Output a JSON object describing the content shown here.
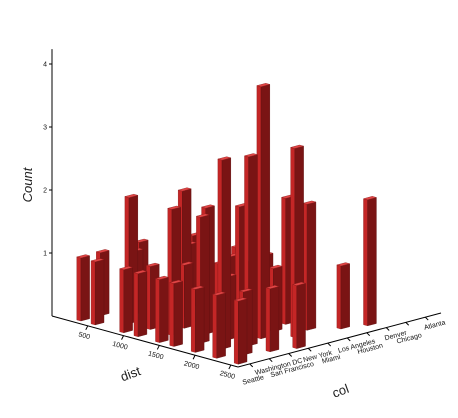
{
  "chart_data": {
    "type": "bar3d",
    "xlabel": "dist",
    "ylabel": "col",
    "zlabel": "Count",
    "xlim": [
      0,
      2600
    ],
    "x_ticks": [
      500,
      1000,
      1500,
      2000,
      2500
    ],
    "z_ticks": [
      1,
      2,
      3,
      4
    ],
    "zlim": [
      0,
      4.3
    ],
    "y_categories": [
      "Seattle",
      "Washington DC",
      "San Francisco",
      "New York",
      "Miami",
      "Los Angeles",
      "Houston",
      "Denver",
      "Chicago",
      "Atlanta"
    ],
    "colors": {
      "front": "#c42626",
      "side": "#7a1414",
      "top": "#e04545",
      "axis": "#000000"
    },
    "bars": [
      {
        "x": 300,
        "y": "Seattle",
        "count": 1
      },
      {
        "x": 300,
        "y": "Washington DC",
        "count": 1
      },
      {
        "x": 300,
        "y": "New York",
        "count": 1
      },
      {
        "x": 500,
        "y": "Seattle",
        "count": 1
      },
      {
        "x": 500,
        "y": "San Francisco",
        "count": 1
      },
      {
        "x": 500,
        "y": "Los Angeles",
        "count": 1
      },
      {
        "x": 700,
        "y": "Washington DC",
        "count": 2
      },
      {
        "x": 700,
        "y": "Miami",
        "count": 1
      },
      {
        "x": 900,
        "y": "Seattle",
        "count": 1
      },
      {
        "x": 900,
        "y": "New York",
        "count": 2
      },
      {
        "x": 1000,
        "y": "Washington DC",
        "count": 1
      },
      {
        "x": 1100,
        "y": "Seattle",
        "count": 1
      },
      {
        "x": 1100,
        "y": "Los Angeles",
        "count": 1
      },
      {
        "x": 1200,
        "y": "San Francisco",
        "count": 1
      },
      {
        "x": 1300,
        "y": "Washington DC",
        "count": 2
      },
      {
        "x": 1300,
        "y": "Miami",
        "count": 1
      },
      {
        "x": 1400,
        "y": "Seattle",
        "count": 1
      },
      {
        "x": 1400,
        "y": "New York",
        "count": 1
      },
      {
        "x": 1500,
        "y": "San Francisco",
        "count": 2
      },
      {
        "x": 1500,
        "y": "Los Angeles",
        "count": 1
      },
      {
        "x": 1600,
        "y": "Seattle",
        "count": 1
      },
      {
        "x": 1600,
        "y": "Miami",
        "count": 1
      },
      {
        "x": 1700,
        "y": "Washington DC",
        "count": 2
      },
      {
        "x": 1700,
        "y": "New York",
        "count": 2
      },
      {
        "x": 1800,
        "y": "San Francisco",
        "count": 1
      },
      {
        "x": 1800,
        "y": "Los Angeles",
        "count": 2
      },
      {
        "x": 1900,
        "y": "Seattle",
        "count": 1
      },
      {
        "x": 1900,
        "y": "Miami",
        "count": 1
      },
      {
        "x": 2000,
        "y": "Washington DC",
        "count": 3
      },
      {
        "x": 2000,
        "y": "New York",
        "count": 4
      },
      {
        "x": 2100,
        "y": "San Francisco",
        "count": 3
      },
      {
        "x": 2100,
        "y": "Los Angeles",
        "count": 2
      },
      {
        "x": 2200,
        "y": "Seattle",
        "count": 1
      },
      {
        "x": 2200,
        "y": "Miami",
        "count": 3
      },
      {
        "x": 2300,
        "y": "Washington DC",
        "count": 1
      },
      {
        "x": 2300,
        "y": "Houston",
        "count": 1
      },
      {
        "x": 2400,
        "y": "San Francisco",
        "count": 1
      },
      {
        "x": 2400,
        "y": "Denver",
        "count": 2
      },
      {
        "x": 2500,
        "y": "Seattle",
        "count": 1
      },
      {
        "x": 2500,
        "y": "New York",
        "count": 1
      }
    ]
  }
}
